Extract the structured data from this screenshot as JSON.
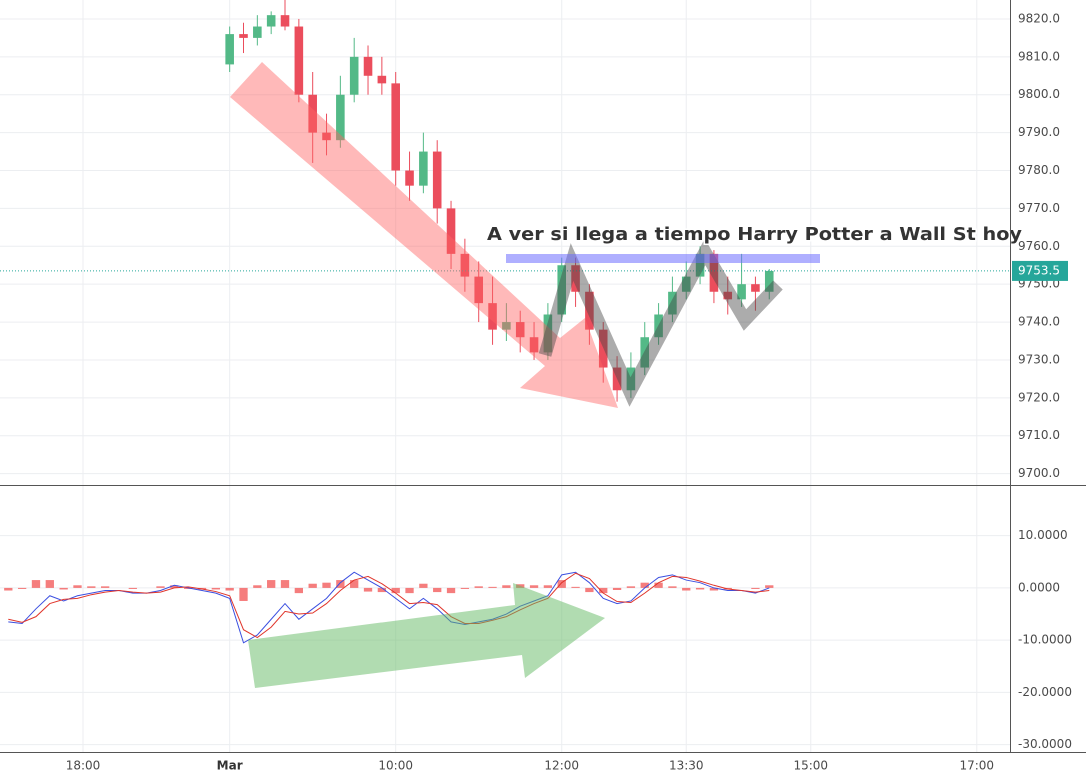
{
  "chart_data": [
    {
      "type": "candlestick",
      "annotation": "A ver si llega a tiempo Harry Potter a Wall St hoy",
      "last_price": 9753.5,
      "up_color": "#53b987",
      "down_color": "#eb4d5c",
      "last_color": "#26a69a",
      "xlim": [
        314,
        1044
      ],
      "ylim": [
        9697,
        9825
      ],
      "yticks": [
        {
          "value": 9700,
          "label": "9700.0"
        },
        {
          "value": 9710,
          "label": "9710.0"
        },
        {
          "value": 9720,
          "label": "9720.0"
        },
        {
          "value": 9730,
          "label": "9730.0"
        },
        {
          "value": 9740,
          "label": "9740.0"
        },
        {
          "value": 9750,
          "label": "9750.0"
        },
        {
          "value": 9760,
          "label": "9760.0"
        },
        {
          "value": 9770,
          "label": "9770.0"
        },
        {
          "value": 9780,
          "label": "9780.0"
        },
        {
          "value": 9790,
          "label": "9790.0"
        },
        {
          "value": 9800,
          "label": "9800.0"
        },
        {
          "value": 9810,
          "label": "9810.0"
        },
        {
          "value": 9820,
          "label": "9820.0"
        }
      ],
      "x": [
        480,
        490,
        500,
        510,
        520,
        530,
        540,
        550,
        560,
        570,
        580,
        590,
        600,
        610,
        620,
        630,
        640,
        650,
        660,
        670,
        680,
        690,
        700,
        710,
        720,
        730,
        740,
        750,
        760,
        770,
        780,
        790,
        800,
        810,
        820,
        830,
        840,
        850,
        860,
        870
      ],
      "open": [
        9808,
        9816,
        9815,
        9818,
        9821,
        9818,
        9800,
        9790,
        9788,
        9800,
        9810,
        9805,
        9803,
        9780,
        9776,
        9785,
        9770,
        9758,
        9752,
        9745,
        9738,
        9740,
        9736,
        9732,
        9742,
        9755,
        9748,
        9738,
        9728,
        9722,
        9728,
        9736,
        9742,
        9748,
        9752,
        9758,
        9748,
        9746,
        9750,
        9748
      ],
      "high": [
        9818,
        9819,
        9821,
        9822,
        9825,
        9820,
        9806,
        9795,
        9805,
        9815,
        9813,
        9810,
        9806,
        9785,
        9790,
        9788,
        9772,
        9762,
        9756,
        9752,
        9745,
        9743,
        9740,
        9745,
        9757,
        9757,
        9750,
        9740,
        9731,
        9732,
        9740,
        9745,
        9752,
        9756,
        9760,
        9759,
        9752,
        9758,
        9752,
        9754
      ],
      "low": [
        9806,
        9811,
        9813,
        9816,
        9817,
        9798,
        9782,
        9784,
        9786,
        9798,
        9800,
        9800,
        9776,
        9772,
        9774,
        9766,
        9754,
        9748,
        9740,
        9734,
        9735,
        9732,
        9730,
        9730,
        9740,
        9744,
        9734,
        9724,
        9719,
        9720,
        9726,
        9734,
        9740,
        9746,
        9750,
        9745,
        9742,
        9744,
        9743,
        9746
      ],
      "close": [
        9816,
        9815,
        9818,
        9821,
        9818,
        9800,
        9790,
        9788,
        9800,
        9810,
        9805,
        9803,
        9780,
        9776,
        9785,
        9770,
        9758,
        9752,
        9745,
        9738,
        9740,
        9736,
        9732,
        9742,
        9755,
        9748,
        9738,
        9728,
        9722,
        9728,
        9736,
        9742,
        9748,
        9752,
        9758,
        9748,
        9746,
        9750,
        9748,
        9753.5
      ]
    },
    {
      "type": "macd",
      "xlim": [
        314,
        1044
      ],
      "xticks": [
        {
          "value": 374,
          "label": "18:00"
        },
        {
          "value": 480,
          "label": "Mar"
        },
        {
          "value": 600,
          "label": "10:00"
        },
        {
          "value": 720,
          "label": "12:00"
        },
        {
          "value": 810,
          "label": "13:30"
        },
        {
          "value": 900,
          "label": "15:00"
        },
        {
          "value": 1020,
          "label": "17:00"
        }
      ],
      "ylim": [
        -31.4,
        19.5
      ],
      "yticks": [
        {
          "value": 10,
          "label": "10.0000"
        },
        {
          "value": 0,
          "label": "0.0000"
        },
        {
          "value": -10,
          "label": "-10.0000"
        },
        {
          "value": -20,
          "label": "-20.0000"
        },
        {
          "value": -30,
          "label": "-30.0000"
        }
      ],
      "x": [
        320,
        330,
        340,
        350,
        360,
        370,
        380,
        390,
        400,
        410,
        420,
        430,
        440,
        450,
        460,
        470,
        480,
        490,
        500,
        510,
        520,
        530,
        540,
        550,
        560,
        570,
        580,
        590,
        600,
        610,
        620,
        630,
        640,
        650,
        660,
        670,
        680,
        690,
        700,
        710,
        720,
        730,
        740,
        750,
        760,
        770,
        780,
        790,
        800,
        810,
        820,
        830,
        840,
        850,
        860,
        870
      ],
      "series": [
        {
          "style": "bar",
          "color": "#f25c5c",
          "values": [
            -0.5,
            -0.2,
            1.5,
            1.5,
            -0.3,
            0.5,
            0.3,
            0.3,
            0,
            -0.2,
            0,
            0.3,
            0.5,
            -0.2,
            -0.3,
            -0.3,
            -0.5,
            -2.5,
            0.5,
            1.5,
            1.5,
            -1,
            0.8,
            1,
            1.5,
            1.5,
            -0.7,
            -0.8,
            -1,
            -1,
            0.8,
            -0.8,
            -1,
            -0.2,
            0.3,
            0.2,
            0.5,
            0.7,
            0.5,
            0.5,
            1.5,
            0.2,
            -0.8,
            -1,
            -0.4,
            0.3,
            1,
            1,
            0.3,
            -0.5,
            -0.3,
            -0.5,
            -0.3,
            0,
            -0.2,
            0.5
          ]
        },
        {
          "style": "line",
          "color": "#3b4fe0",
          "values": [
            -6.5,
            -6.8,
            -4,
            -1.5,
            -2.5,
            -1.5,
            -1,
            -0.5,
            -0.5,
            -1,
            -1,
            -0.5,
            0.5,
            0,
            -0.5,
            -1,
            -2,
            -10.5,
            -9,
            -6,
            -3,
            -6,
            -4,
            -2,
            1,
            3,
            1.5,
            0,
            -2,
            -4,
            -2,
            -4,
            -6.5,
            -7,
            -6.5,
            -6,
            -5,
            -3.5,
            -2.5,
            -1.5,
            2.5,
            3,
            1,
            -2,
            -3,
            -2.5,
            0,
            2,
            2.5,
            1.5,
            1,
            0,
            -0.5,
            -0.5,
            -1,
            0
          ]
        },
        {
          "style": "line",
          "color": "#e0352b",
          "values": [
            -6,
            -6.6,
            -5.5,
            -3,
            -2.2,
            -2,
            -1.3,
            -0.8,
            -0.5,
            -0.8,
            -1,
            -0.8,
            0,
            0.2,
            -0.2,
            -0.7,
            -1.5,
            -8,
            -9.5,
            -7.5,
            -4.5,
            -5,
            -4.8,
            -3,
            -0.5,
            1.5,
            2.2,
            0.8,
            -1,
            -3,
            -2.8,
            -3.2,
            -5.5,
            -6.8,
            -6.8,
            -6.2,
            -5.5,
            -4.2,
            -3,
            -2,
            1,
            2.8,
            1.8,
            -1,
            -2.6,
            -2.8,
            -1,
            1,
            2.2,
            2,
            1.3,
            0.5,
            -0.2,
            -0.5,
            -0.8,
            -0.5
          ]
        }
      ]
    }
  ]
}
